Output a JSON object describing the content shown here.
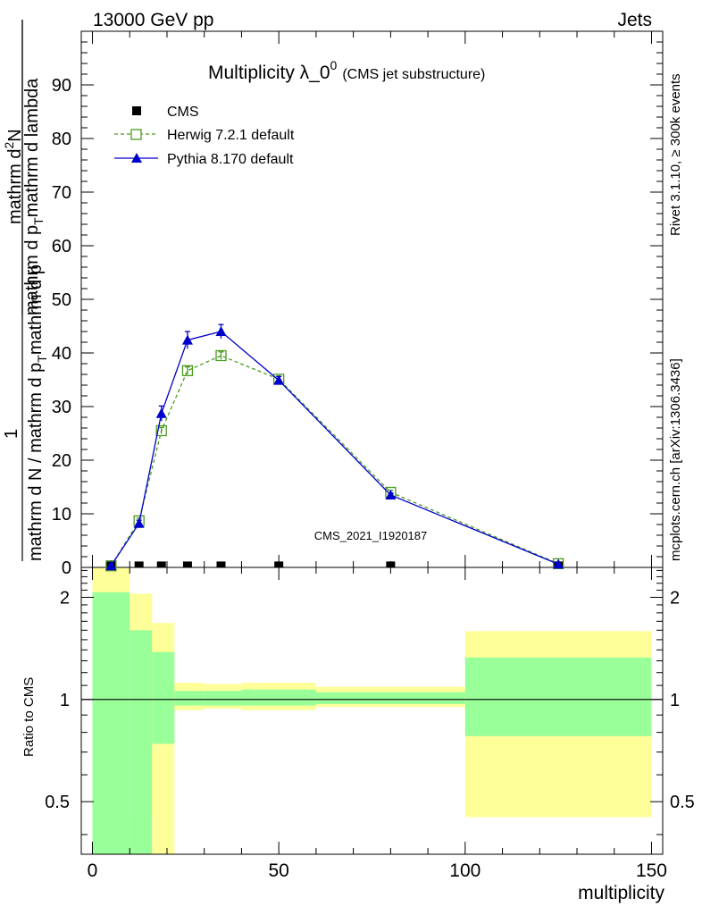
{
  "header": {
    "left": "13000 GeV pp",
    "right": "Jets"
  },
  "side_labels": {
    "rivet": "Rivet 3.1.10, ≥ 300k events",
    "mcplots": "mcplots.cern.ch [arXiv:1306.3436]"
  },
  "chart_data": {
    "type": "line",
    "title_main": "Multiplicity λ_0",
    "title_sup": "0",
    "title_sub": "(CMS jet substructure)",
    "analysis_id": "CMS_2021_I1920187",
    "xlabel": "multiplicity",
    "ylabel_top_num": "1",
    "ylabel_top_den": "mathrm d N / mathrm d p_T mathrm d p_T",
    "ylabel_top_num_vertical": "mathrm d^{2}N / mathrm d p_T mathrm d lambda",
    "ylabel_main_parts": {
      "top": "1",
      "top_over": "mathrm d N / mathrm d p",
      "top_sub": "T",
      "top_tail": "mathrm d p",
      "numerator": "mathrm d",
      "numerator_sup": "2",
      "numerator_tail": "N",
      "num_over": "mathrm d p",
      "num_sub": "T",
      "num_tail": "mathrm d lambda"
    },
    "ylabel_ratio": "Ratio to CMS",
    "xlim": [
      -3,
      153
    ],
    "ylim": [
      0,
      100
    ],
    "x_ticks": [
      0,
      50,
      100,
      150
    ],
    "y_ticks": [
      0,
      10,
      20,
      30,
      40,
      50,
      60,
      70,
      80,
      90
    ],
    "ratio_ylim": [
      0.35,
      2.45
    ],
    "ratio_ticks": [
      0.5,
      1,
      2
    ],
    "legend": [
      {
        "name": "CMS",
        "marker": "square-filled",
        "color": "#000000"
      },
      {
        "name": "Herwig 7.2.1 default",
        "marker": "square-open",
        "color": "#4c9a1e",
        "dash": true
      },
      {
        "name": "Pythia 8.170 default",
        "marker": "triangle",
        "color": "#0000cc",
        "dash": false
      }
    ],
    "series": [
      {
        "name": "CMS",
        "x": [
          5,
          12.5,
          18.5,
          25.5,
          34.5,
          50,
          80,
          125
        ],
        "values": [
          0.1,
          0.1,
          0.1,
          0.1,
          0.1,
          0.1,
          0.1,
          0.1
        ]
      },
      {
        "name": "Herwig 7.2.1 default",
        "x": [
          5,
          12.5,
          18.5,
          25.5,
          34.5,
          50,
          80,
          125
        ],
        "values": [
          0.3,
          8.7,
          25.5,
          36.7,
          39.5,
          35.1,
          14.0,
          0.7
        ],
        "errors": [
          0.1,
          0.5,
          0.6,
          0.7,
          0.7,
          0.6,
          0.4,
          0.1
        ]
      },
      {
        "name": "Pythia 8.170 default",
        "x": [
          5,
          12.5,
          18.5,
          25.5,
          34.5,
          50,
          80,
          125
        ],
        "values": [
          0.3,
          8.2,
          28.7,
          42.4,
          44.0,
          34.9,
          13.5,
          0.6
        ],
        "errors": [
          0.1,
          0.6,
          1.4,
          1.6,
          1.3,
          0.7,
          0.4,
          0.1
        ]
      }
    ],
    "ratio_bands": [
      {
        "x0": 0,
        "x1": 10,
        "inner": [
          0.35,
          2.07
        ],
        "outer": [
          0.35,
          2.45
        ]
      },
      {
        "x0": 10,
        "x1": 16,
        "inner": [
          0.35,
          1.6
        ],
        "outer": [
          0.45,
          2.05
        ]
      },
      {
        "x0": 16,
        "x1": 22,
        "inner": [
          0.74,
          1.38
        ],
        "outer": [
          0.35,
          1.68
        ]
      },
      {
        "x0": 22,
        "x1": 30,
        "inner": [
          0.96,
          1.06
        ],
        "outer": [
          0.93,
          1.12
        ]
      },
      {
        "x0": 30,
        "x1": 40,
        "inner": [
          0.96,
          1.06
        ],
        "outer": [
          0.94,
          1.11
        ]
      },
      {
        "x0": 40,
        "x1": 60,
        "inner": [
          0.96,
          1.07
        ],
        "outer": [
          0.93,
          1.12
        ]
      },
      {
        "x0": 60,
        "x1": 100,
        "inner": [
          0.97,
          1.05
        ],
        "outer": [
          0.95,
          1.09
        ]
      },
      {
        "x0": 100,
        "x1": 150,
        "inner": [
          0.78,
          1.33
        ],
        "outer": [
          0.45,
          1.59
        ]
      }
    ],
    "colors": {
      "inner_band": "#99ff99",
      "outer_band": "#ffff99",
      "herwig": "#4c9a1e",
      "pythia": "#0000cc",
      "side_text": "#888888"
    }
  }
}
